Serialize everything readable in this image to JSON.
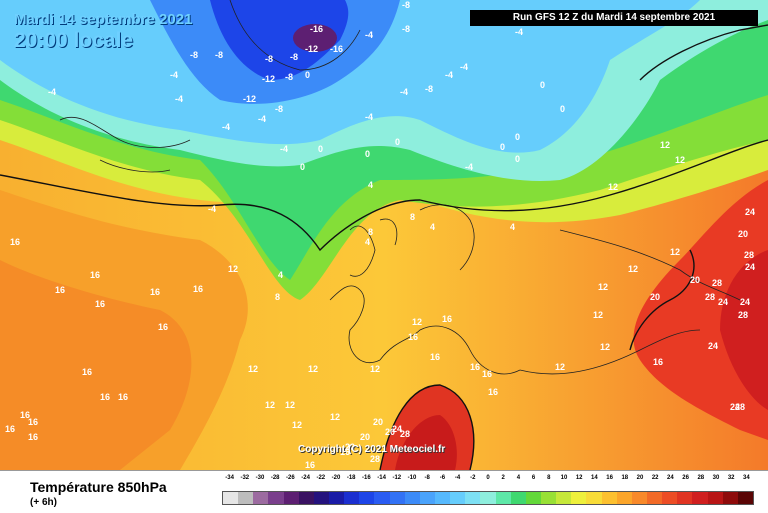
{
  "header": {
    "date_line": "Mardi 14 septembre 2021",
    "time_line": "20:00 locale"
  },
  "run_info": "Run GFS 12 Z du Mardi 14 septembre 2021",
  "copyright": "Copyright (C) 2021 Meteociel.fr",
  "legend": {
    "title": "Température 850hPa",
    "subtitle": "(+ 6h)"
  },
  "scale": {
    "values": [
      "-34",
      "-32",
      "-30",
      "-28",
      "-26",
      "-24",
      "-22",
      "-20",
      "-18",
      "-16",
      "-14",
      "-12",
      "-10",
      "-8",
      "-6",
      "-4",
      "-2",
      "0",
      "2",
      "4",
      "6",
      "8",
      "10",
      "12",
      "14",
      "16",
      "18",
      "20",
      "22",
      "24",
      "26",
      "28",
      "30",
      "32",
      "34"
    ],
    "colors": [
      "#e6e6e6",
      "#bdbdbd",
      "#9c6ba0",
      "#7a3f8c",
      "#5d1f72",
      "#3a1262",
      "#24127d",
      "#1a1ba6",
      "#1b2fd0",
      "#1d45e8",
      "#2a5cf2",
      "#3272f5",
      "#3c8bf8",
      "#4aa3fb",
      "#56b9fd",
      "#66cdfc",
      "#7de0f4",
      "#8eeedd",
      "#5ee8a8",
      "#3fd870",
      "#63d83a",
      "#98e035",
      "#c6e83a",
      "#eef03c",
      "#f8dc38",
      "#fcc02f",
      "#fba52a",
      "#f8892a",
      "#f26a27",
      "#ec4d25",
      "#e03422",
      "#d01f1f",
      "#b81515",
      "#8e0b0b",
      "#5a0505"
    ]
  },
  "map_labels": {
    "negatives": [
      "-16",
      "-12",
      "-16",
      "-8",
      "-8",
      "-8",
      "-12",
      "-8",
      "-8",
      "-4",
      "-4",
      "-4",
      "-4",
      "-4",
      "-4",
      "-4",
      "-4",
      "-4",
      "-8",
      "-8",
      "-12",
      "-8",
      "-4",
      "-4",
      "-4",
      "-8",
      "-4",
      "-4"
    ],
    "zeros": [
      "0",
      "0",
      "0",
      "0",
      "0",
      "0",
      "0",
      "0",
      "0",
      "0"
    ],
    "fours": [
      "4",
      "4",
      "4",
      "4",
      "4"
    ],
    "eights": [
      "8",
      "8",
      "8"
    ],
    "twelves": [
      "12",
      "12",
      "12",
      "12",
      "12",
      "12",
      "12",
      "12",
      "12",
      "12",
      "12",
      "12",
      "12",
      "12",
      "12",
      "12",
      "12",
      "12"
    ],
    "sixteens": [
      "16",
      "16",
      "16",
      "16",
      "16",
      "16",
      "16",
      "16",
      "16",
      "16",
      "16",
      "16",
      "16",
      "16",
      "16",
      "16",
      "16",
      "16",
      "16",
      "16",
      "16",
      "16",
      "16"
    ],
    "twenties": [
      "20",
      "20",
      "20",
      "20",
      "20",
      "20",
      "20"
    ],
    "twentyfours": [
      "24",
      "24",
      "24",
      "24",
      "24",
      "24",
      "24"
    ],
    "twentyeights": [
      "28",
      "28",
      "28",
      "28",
      "28",
      "28",
      "28"
    ]
  }
}
